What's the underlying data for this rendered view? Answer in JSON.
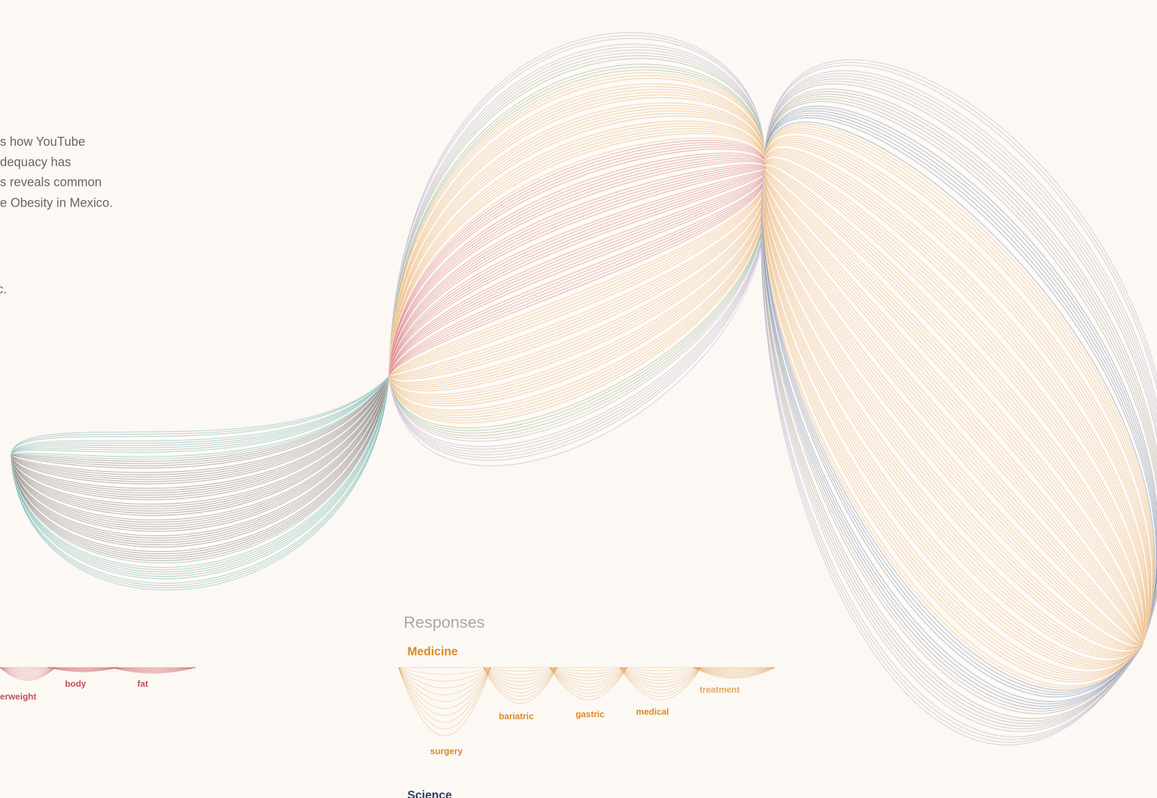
{
  "intro": {
    "lines": [
      "s how YouTube",
      "dequacy has",
      "s reveals common",
      "e Obesity in Mexico."
    ],
    "note": "c."
  },
  "left_legend": {
    "terms": [
      "erweight",
      "body",
      "fat"
    ]
  },
  "responses": {
    "title": "Responses",
    "groups": [
      {
        "name": "Medicine",
        "terms": [
          "surgery",
          "bariatric",
          "gastric",
          "medical",
          "treatment"
        ]
      },
      {
        "name": "Science"
      }
    ]
  }
}
